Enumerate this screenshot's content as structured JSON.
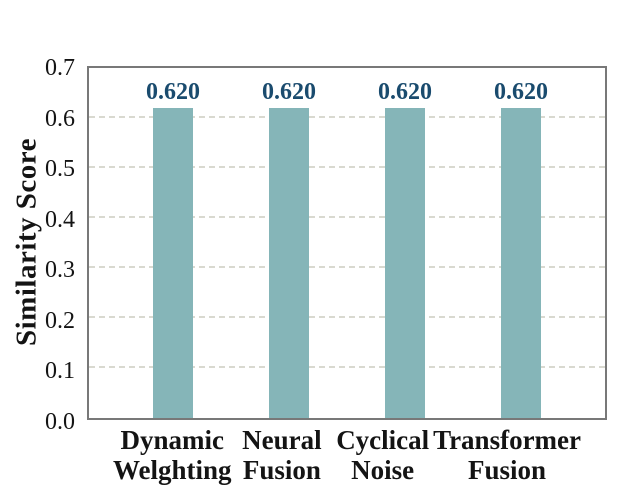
{
  "figure": {
    "background": "#ffffff",
    "plot_border_color": "#787878",
    "gridline_color": "#d9d9d0",
    "bar_color": "#85b5b8",
    "value_label_color": "#1a4b6e",
    "text_color": "#141414"
  },
  "chart_data": {
    "type": "bar",
    "title": "",
    "xlabel": "",
    "ylabel": "Similarity Score",
    "categories": [
      "Dynamic\nWelghting",
      "Neural\nFusion",
      "Cyclical\nNoise",
      "Transformer\nFusion"
    ],
    "values": [
      0.62,
      0.62,
      0.62,
      0.62
    ],
    "value_labels": [
      "0.620",
      "0.620",
      "0.620",
      "0.620"
    ],
    "ylim": [
      0,
      0.7
    ],
    "yticks": [
      0.0,
      0.1,
      0.2,
      0.3,
      0.4,
      0.5,
      0.6,
      0.7
    ],
    "ytick_labels": [
      "0.0",
      "0.1",
      "0.2",
      "0.3",
      "0.4",
      "0.5",
      "0.6",
      "0.7"
    ],
    "grid": "horizontal-dashed",
    "legend": "none"
  }
}
